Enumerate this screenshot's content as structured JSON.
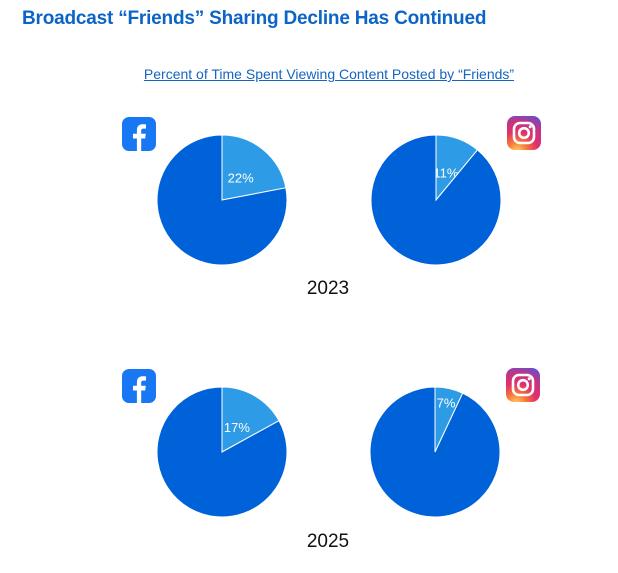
{
  "title": "Broadcast “Friends” Sharing Decline Has Continued",
  "subtitle": "Percent of Time Spent Viewing Content Posted by “Friends”",
  "colors": {
    "friends": "#2e9be6",
    "other": "#0062d8",
    "title": "#0b64c6",
    "facebook": "#1877f2"
  },
  "chart_data": [
    {
      "type": "pie",
      "platform_icon": "facebook-icon",
      "year_label": "2023",
      "slices": [
        {
          "value": 22,
          "label": "22%"
        },
        {
          "value": 78,
          "label": ""
        }
      ]
    },
    {
      "type": "pie",
      "platform_icon": "instagram-icon",
      "year_label": "2023",
      "slices": [
        {
          "value": 11,
          "label": "11%"
        },
        {
          "value": 89,
          "label": ""
        }
      ]
    },
    {
      "type": "pie",
      "platform_icon": "facebook-icon",
      "year_label": "2025",
      "slices": [
        {
          "value": 17,
          "label": "17%"
        },
        {
          "value": 83,
          "label": ""
        }
      ]
    },
    {
      "type": "pie",
      "platform_icon": "instagram-icon",
      "year_label": "2025",
      "slices": [
        {
          "value": 7,
          "label": "7%"
        },
        {
          "value": 93,
          "label": ""
        }
      ]
    }
  ],
  "year_labels": [
    "2023",
    "2025"
  ]
}
